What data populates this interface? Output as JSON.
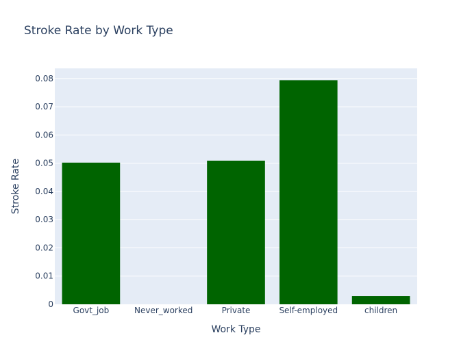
{
  "chart_data": {
    "type": "bar",
    "title": "Stroke Rate by Work Type",
    "xlabel": "Work Type",
    "ylabel": "Stroke Rate",
    "categories": [
      "Govt_job",
      "Never_worked",
      "Private",
      "Self-employed",
      "children"
    ],
    "values": [
      0.0502,
      0.0,
      0.0509,
      0.0794,
      0.0029
    ],
    "ylim": [
      0,
      0.0836
    ],
    "yticks": [
      0,
      0.01,
      0.02,
      0.03,
      0.04,
      0.05,
      0.06,
      0.07,
      0.08
    ],
    "ytick_labels": [
      "0",
      "0.01",
      "0.02",
      "0.03",
      "0.04",
      "0.05",
      "0.06",
      "0.07",
      "0.08"
    ],
    "grid": true,
    "legend": "none",
    "colors": {
      "bar": "#006400",
      "plot_bg": "#e5ecf6",
      "grid": "#ffffff",
      "text": "#2a3f5f"
    }
  }
}
